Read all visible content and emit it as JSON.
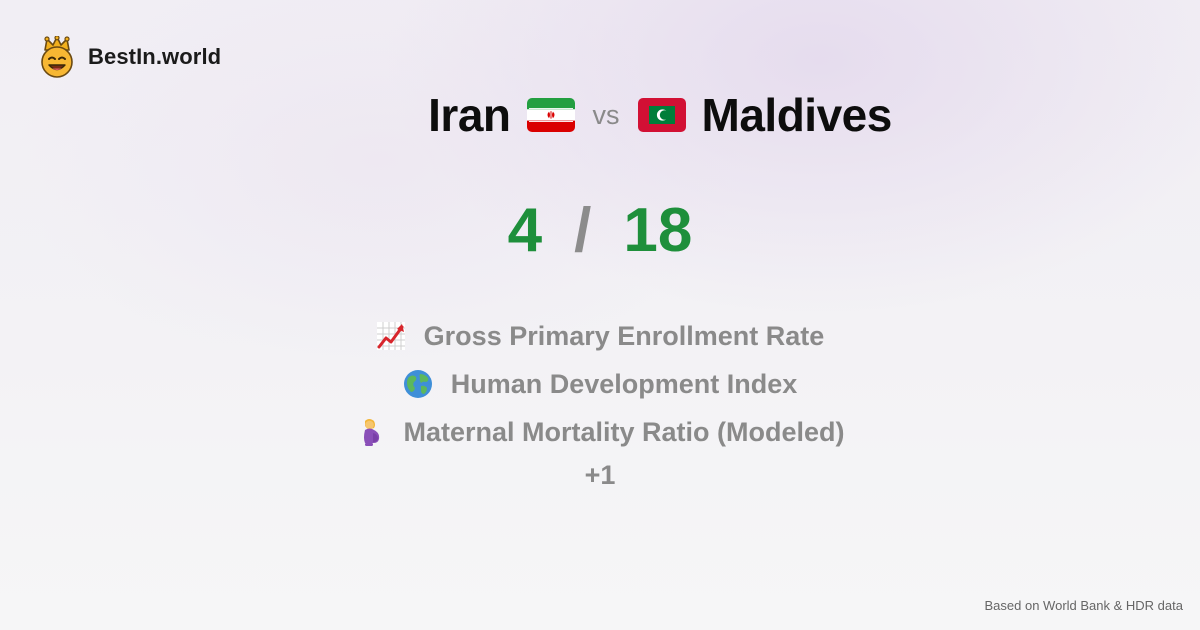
{
  "brand": {
    "name": "BestIn.world",
    "icon": "crowned-smiley-icon"
  },
  "title": {
    "country_a": "Iran",
    "flag_a": "iran-flag-icon",
    "vs": "vs",
    "country_b": "Maldives",
    "flag_b": "maldives-flag-icon"
  },
  "score": {
    "a": "4",
    "separator": "/",
    "b": "18",
    "color": "#1e8f3b"
  },
  "metrics": [
    {
      "icon": "chart-increasing-icon",
      "label": "Gross Primary Enrollment Rate"
    },
    {
      "icon": "globe-icon",
      "label": "Human Development Index"
    },
    {
      "icon": "pregnant-woman-icon",
      "label": "Maternal Mortality Ratio (Modeled)"
    }
  ],
  "more": "+1",
  "footer": "Based on World Bank & HDR data"
}
